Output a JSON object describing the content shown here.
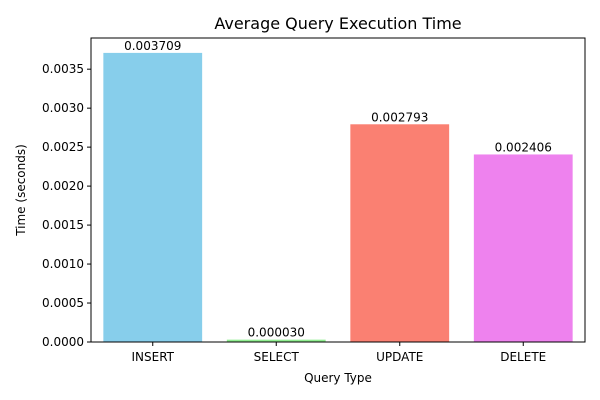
{
  "chart_data": {
    "type": "bar",
    "title": "Average Query Execution Time",
    "xlabel": "Query Type",
    "ylabel": "Time (seconds)",
    "categories": [
      "INSERT",
      "SELECT",
      "UPDATE",
      "DELETE"
    ],
    "values": [
      0.003709,
      3e-05,
      0.002793,
      0.002406
    ],
    "value_labels": [
      "0.003709",
      "0.000030",
      "0.002793",
      "0.002406"
    ],
    "colors": [
      "#87ceeb",
      "#90ee90",
      "#fa8072",
      "#ee82ee"
    ],
    "ylim": [
      0,
      0.0039
    ],
    "yticks": [
      0,
      0.0005,
      0.001,
      0.0015,
      0.002,
      0.0025,
      0.003,
      0.0035
    ],
    "ytick_labels": [
      "0.0000",
      "0.0005",
      "0.0010",
      "0.0015",
      "0.0020",
      "0.0025",
      "0.0030",
      "0.0035"
    ],
    "grid": false,
    "legend": "none"
  }
}
